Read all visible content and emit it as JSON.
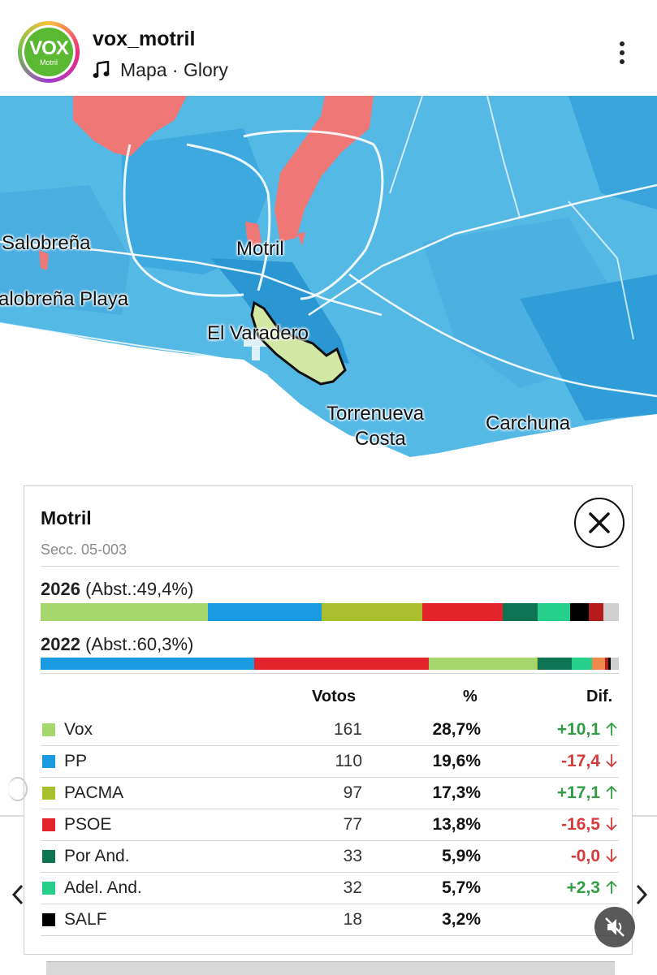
{
  "header": {
    "username": "vox_motril",
    "subtitle": "Mapa · Glory",
    "avatar": {
      "brand": "VOX",
      "sub": "Motril"
    }
  },
  "map": {
    "labels": {
      "salobrena": "Salobreña",
      "salobrena_playa": "alobreña Playa",
      "motril": "Motril",
      "varadero": "El Varadero",
      "torrenueva1": "Torrenueva",
      "torrenueva2": "Costa",
      "carchuna": "Carchuna"
    },
    "colors": {
      "sea": "#ffffff",
      "land_blue": "#55b9e6",
      "dark_blue": "#2d9fd8",
      "pp_red": "#ef7877",
      "highlight": "#d4e8a6"
    }
  },
  "panel": {
    "title": "Motril",
    "section": "Secc. 05-003",
    "year_a": "2026",
    "abst_a": " (Abst.:49,4%)",
    "year_b": "2022",
    "abst_b": " (Abst.:60,3%)",
    "bar_2026": [
      {
        "party": "Vox",
        "pct": 28.7,
        "color": "#a6d76c"
      },
      {
        "party": "PP",
        "pct": 19.6,
        "color": "#1a9ae0"
      },
      {
        "party": "PACMA",
        "pct": 17.3,
        "color": "#a9bf2e"
      },
      {
        "party": "PSOE",
        "pct": 13.8,
        "color": "#e3242b"
      },
      {
        "party": "Por And.",
        "pct": 5.9,
        "color": "#0e7353"
      },
      {
        "party": "Adel. And.",
        "pct": 5.7,
        "color": "#27d08a"
      },
      {
        "party": "SALF",
        "pct": 3.2,
        "color": "#000000"
      },
      {
        "party": "otros1",
        "pct": 2.5,
        "color": "#b51b1b"
      },
      {
        "party": "otros2",
        "pct": 2.6,
        "color": "#cfcfcf"
      }
    ],
    "bar_2022": [
      {
        "party": "PP",
        "pct": 37.0,
        "color": "#1a9ae0"
      },
      {
        "party": "PSOE",
        "pct": 30.2,
        "color": "#e3242b"
      },
      {
        "party": "Vox",
        "pct": 18.6,
        "color": "#a6d76c"
      },
      {
        "party": "PACMA",
        "pct": 0.2,
        "color": "#a9bf2e"
      },
      {
        "party": "Por And.",
        "pct": 5.9,
        "color": "#0e7353"
      },
      {
        "party": "Adel. And.",
        "pct": 3.4,
        "color": "#27d08a"
      },
      {
        "party": "otros1",
        "pct": 2.3,
        "color": "#f08a4b"
      },
      {
        "party": "otros2",
        "pct": 0.6,
        "color": "#b51b1b"
      },
      {
        "party": "otros3",
        "pct": 0.4,
        "color": "#000000"
      },
      {
        "party": "otros4",
        "pct": 1.4,
        "color": "#cfcfcf"
      }
    ],
    "columns": {
      "votes": "Votos",
      "pct": "%",
      "diff": "Dif."
    },
    "rows": [
      {
        "name": "Vox",
        "votes": "161",
        "pct": "28,7%",
        "diff": "+10,1",
        "dir": "up",
        "color": "#a6d76c"
      },
      {
        "name": "PP",
        "votes": "110",
        "pct": "19,6%",
        "diff": "-17,4",
        "dir": "down",
        "color": "#1a9ae0"
      },
      {
        "name": "PACMA",
        "votes": "97",
        "pct": "17,3%",
        "diff": "+17,1",
        "dir": "up",
        "color": "#a9bf2e"
      },
      {
        "name": "PSOE",
        "votes": "77",
        "pct": "13,8%",
        "diff": "-16,5",
        "dir": "down",
        "color": "#e3242b"
      },
      {
        "name": "Por And.",
        "votes": "33",
        "pct": "5,9%",
        "diff": "-0,0",
        "dir": "down",
        "color": "#0e7353"
      },
      {
        "name": "Adel. And.",
        "votes": "32",
        "pct": "5,7%",
        "diff": "+2,3",
        "dir": "up",
        "color": "#27d08a"
      },
      {
        "name": "SALF",
        "votes": "18",
        "pct": "3,2%",
        "diff": "",
        "dir": "",
        "color": "#000000"
      }
    ],
    "up_color": "#2f9e44",
    "down_color": "#d63a3a"
  }
}
